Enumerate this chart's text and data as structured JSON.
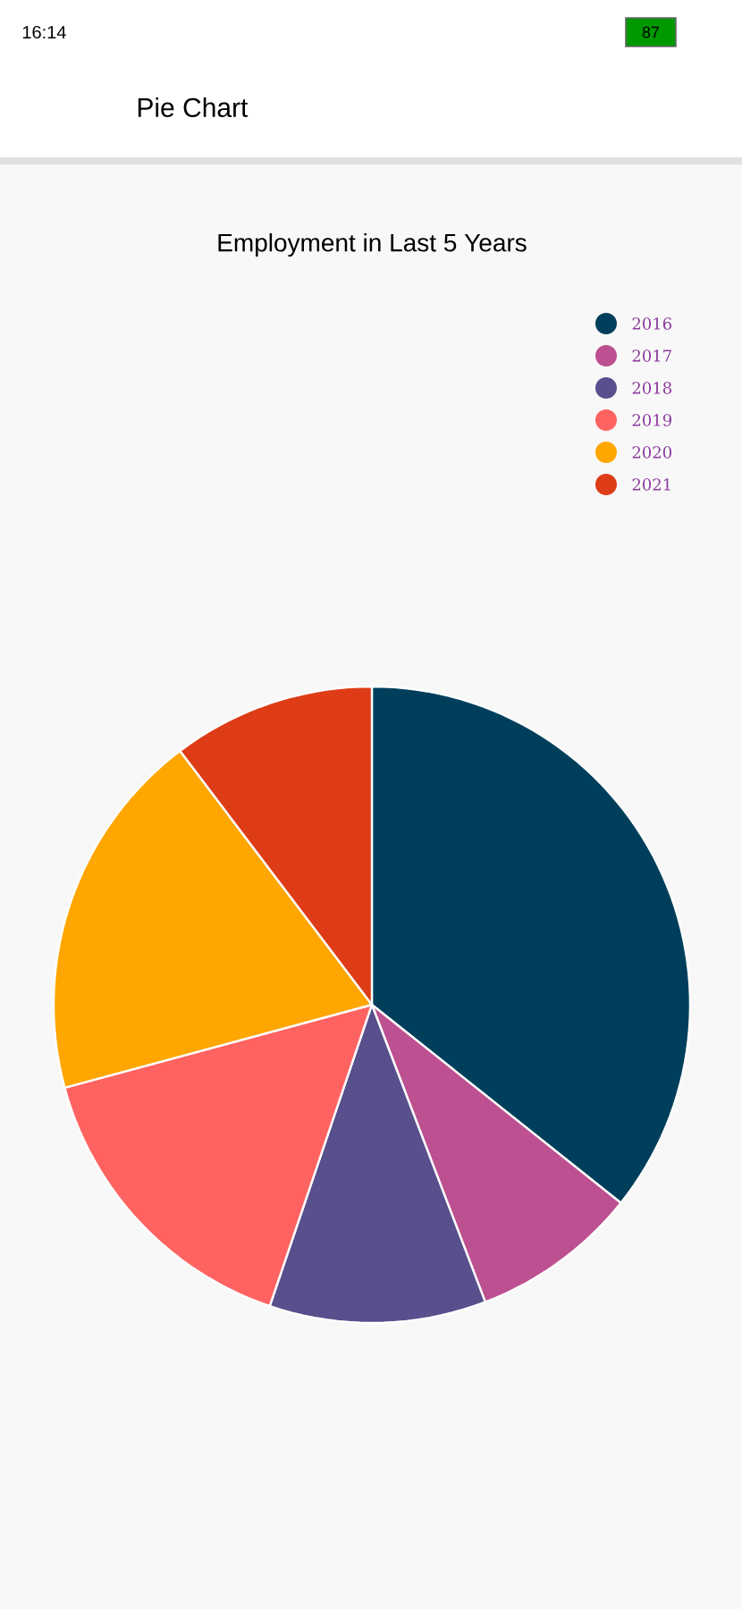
{
  "chart_data": {
    "type": "pie",
    "title": "Employment in Last 5 Years",
    "categories": [
      "2016",
      "2017",
      "2018",
      "2019",
      "2020",
      "2021"
    ],
    "values": [
      35.7,
      8.5,
      11.0,
      15.6,
      18.9,
      10.3
    ],
    "colors": [
      "#003f5c",
      "#bc5090",
      "#58508d",
      "#ff6361",
      "#ffa600",
      "#dd3c17"
    ],
    "legend": "top right",
    "annotations": [
      "Pie Chart",
      "16:14",
      "87"
    ]
  }
}
